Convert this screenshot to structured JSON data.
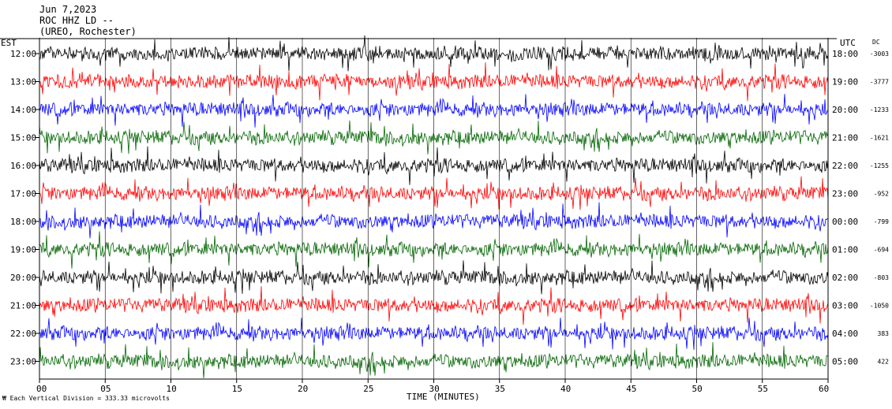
{
  "header": {
    "line1": "Jun 7,2023",
    "line2": "ROC HHZ LD --",
    "line3": "(UREO, Rochester)"
  },
  "labels": {
    "left_tz": "EST",
    "right_tz": "UTC",
    "dc": "DC",
    "xlabel": "TIME (MINUTES)",
    "footer": "Each Vertical Division =  333.33 microvolts"
  },
  "colors": {
    "black": "#000000",
    "red": "#ff0000",
    "blue": "#0000ff",
    "green": "#006400"
  },
  "chart_data": {
    "type": "line",
    "title": "",
    "xlabel": "TIME (MINUTES)",
    "ylabel": "",
    "xlim": [
      0,
      60
    ],
    "x_ticks": [
      "00",
      "05",
      "10",
      "15",
      "20",
      "25",
      "30",
      "35",
      "40",
      "45",
      "50",
      "55",
      "60"
    ],
    "x_tick_values": [
      0,
      5,
      10,
      15,
      20,
      25,
      30,
      35,
      40,
      45,
      50,
      55,
      60
    ],
    "grid": true,
    "series_color_cycle": [
      "black",
      "red",
      "blue",
      "green"
    ],
    "rows": [
      {
        "est": "12:00",
        "utc": "18:00",
        "dc": "-3003",
        "color": "black"
      },
      {
        "est": "13:00",
        "utc": "19:00",
        "dc": "-3777",
        "color": "red"
      },
      {
        "est": "14:00",
        "utc": "20:00",
        "dc": "-1233",
        "color": "blue"
      },
      {
        "est": "15:00",
        "utc": "21:00",
        "dc": "-1621",
        "color": "green"
      },
      {
        "est": "16:00",
        "utc": "22:00",
        "dc": "-1255",
        "color": "black"
      },
      {
        "est": "17:00",
        "utc": "23:00",
        "dc": "-952",
        "color": "red"
      },
      {
        "est": "18:00",
        "utc": "00:00",
        "dc": "-799",
        "color": "blue"
      },
      {
        "est": "19:00",
        "utc": "01:00",
        "dc": "-694",
        "color": "green"
      },
      {
        "est": "20:00",
        "utc": "02:00",
        "dc": "-803",
        "color": "black"
      },
      {
        "est": "21:00",
        "utc": "03:00",
        "dc": "-1050",
        "color": "red"
      },
      {
        "est": "22:00",
        "utc": "04:00",
        "dc": "383",
        "color": "blue"
      },
      {
        "est": "23:00",
        "utc": "05:00",
        "dc": "422",
        "color": "green"
      }
    ]
  }
}
